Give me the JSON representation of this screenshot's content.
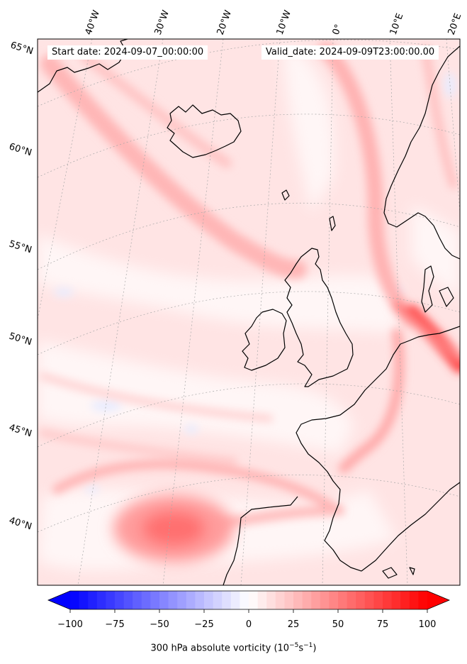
{
  "header": {
    "start_date": "Start date: 2024-09-07_00:00:00",
    "valid_date": "Valid_date: 2024-09-09T23:00:00.00"
  },
  "map": {
    "projection": "polar-conic",
    "lon_labels": [
      "40°W",
      "30°W",
      "20°W",
      "10°W",
      "0°",
      "10°E",
      "20°E"
    ],
    "lat_labels": [
      "65°N",
      "60°N",
      "55°N",
      "50°N",
      "45°N",
      "40°N"
    ],
    "field": "300 hPa absolute vorticity",
    "colormap": "bwr",
    "coastline_color": "#000000",
    "gridline_color": "#a0a0a0"
  },
  "colorbar": {
    "ticks": [
      "−100",
      "−75",
      "−50",
      "−25",
      "0",
      "25",
      "50",
      "75",
      "100"
    ],
    "min": -100,
    "max": 100,
    "label_main": "300 hPa absolute vorticity (10",
    "label_exp1": "−5",
    "label_mid": "s",
    "label_exp2": "−1",
    "label_end": ")"
  }
}
